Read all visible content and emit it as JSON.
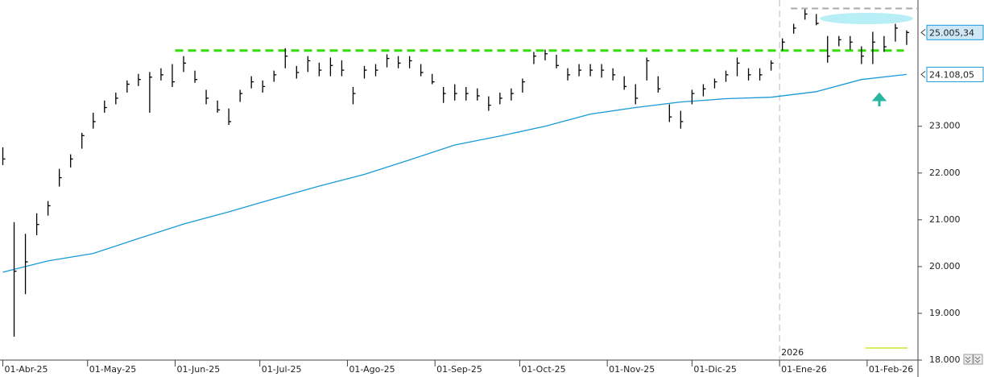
{
  "chart_data": {
    "type": "ohlc",
    "x": [
      "2025-04-01",
      "2025-04-05",
      "2025-04-09",
      "2025-04-13",
      "2025-04-17",
      "2025-04-21",
      "2025-04-25",
      "2025-04-29",
      "2025-05-03",
      "2025-05-07",
      "2025-05-11",
      "2025-05-15",
      "2025-05-19",
      "2025-05-23",
      "2025-05-27",
      "2025-05-31",
      "2025-06-04",
      "2025-06-08",
      "2025-06-12",
      "2025-06-16",
      "2025-06-20",
      "2025-06-24",
      "2025-06-28",
      "2025-07-02",
      "2025-07-06",
      "2025-07-10",
      "2025-07-14",
      "2025-07-18",
      "2025-07-22",
      "2025-07-26",
      "2025-07-30",
      "2025-08-03",
      "2025-08-07",
      "2025-08-11",
      "2025-08-15",
      "2025-08-19",
      "2025-08-23",
      "2025-08-27",
      "2025-08-31",
      "2025-09-04",
      "2025-09-08",
      "2025-09-12",
      "2025-09-16",
      "2025-09-20",
      "2025-09-24",
      "2025-09-28",
      "2025-10-02",
      "2025-10-06",
      "2025-10-10",
      "2025-10-14",
      "2025-10-18",
      "2025-10-22",
      "2025-10-26",
      "2025-10-30",
      "2025-11-03",
      "2025-11-07",
      "2025-11-11",
      "2025-11-15",
      "2025-11-19",
      "2025-11-23",
      "2025-11-27",
      "2025-12-01",
      "2025-12-05",
      "2025-12-09",
      "2025-12-13",
      "2025-12-17",
      "2025-12-21",
      "2025-12-25",
      "2025-12-29",
      "2026-01-02",
      "2026-01-06",
      "2026-01-10",
      "2026-01-14",
      "2026-01-18",
      "2026-01-22",
      "2026-01-26",
      "2026-01-30",
      "2026-02-03",
      "2026-02-07",
      "2026-02-11",
      "2026-02-15"
    ],
    "high": [
      22550,
      20950,
      20700,
      21140,
      21400,
      22090,
      22400,
      22860,
      23290,
      23550,
      23720,
      23980,
      24120,
      24160,
      24240,
      24330,
      24500,
      24190,
      23780,
      23550,
      23380,
      23780,
      24070,
      23980,
      24190,
      24670,
      24290,
      24500,
      24360,
      24470,
      24410,
      23840,
      24290,
      24330,
      24540,
      24500,
      24500,
      24330,
      24120,
      23840,
      23900,
      23840,
      23810,
      23640,
      23720,
      23810,
      24020,
      24590,
      24640,
      24530,
      24240,
      24330,
      24330,
      24330,
      24240,
      24070,
      23900,
      24470,
      24070,
      23470,
      23330,
      23780,
      23900,
      24020,
      24190,
      24470,
      24240,
      24240,
      24410,
      24880,
      25190,
      25500,
      25400,
      24930,
      24930,
      24930,
      24710,
      25020,
      24930,
      25190,
      25050
    ],
    "low": [
      22170,
      18500,
      19410,
      20670,
      21090,
      21710,
      22120,
      22520,
      22950,
      23290,
      23470,
      23720,
      23860,
      23290,
      23980,
      23840,
      24160,
      23930,
      23470,
      23290,
      23030,
      23520,
      23810,
      23720,
      23950,
      24240,
      24020,
      24160,
      24070,
      24070,
      24070,
      23470,
      24020,
      24070,
      24260,
      24240,
      24240,
      24070,
      23900,
      23500,
      23550,
      23550,
      23550,
      23330,
      23470,
      23550,
      23720,
      24330,
      24410,
      24240,
      23980,
      24070,
      24070,
      24040,
      23980,
      23780,
      23470,
      23980,
      23720,
      23090,
      22950,
      23470,
      23640,
      23810,
      23950,
      24070,
      23980,
      23980,
      24190,
      24620,
      24980,
      25280,
      25160,
      24360,
      24710,
      24640,
      24330,
      24330,
      24590,
      24810,
      24740
    ],
    "close": [
      22300,
      19900,
      20100,
      20900,
      21300,
      21900,
      22300,
      22800,
      23100,
      23400,
      23600,
      23900,
      24000,
      24050,
      24100,
      23950,
      24350,
      24000,
      23600,
      23350,
      23100,
      23700,
      23950,
      23850,
      24100,
      24500,
      24150,
      24400,
      24200,
      24300,
      24200,
      23700,
      24200,
      24200,
      24450,
      24350,
      24400,
      24150,
      23950,
      23700,
      23700,
      23700,
      23650,
      23450,
      23600,
      23700,
      23950,
      24500,
      24550,
      24300,
      24100,
      24200,
      24200,
      24200,
      24100,
      23850,
      23600,
      24400,
      23800,
      23200,
      23100,
      23700,
      23800,
      23950,
      24100,
      24350,
      24100,
      24100,
      24350,
      24800,
      25100,
      25400,
      25200,
      24500,
      24850,
      24800,
      24500,
      24800,
      24700,
      25100,
      25005.34
    ],
    "color": "#000000",
    "ma": {
      "color": "#1a9ad6",
      "x": [
        "2025-04-01",
        "2025-04-17",
        "2025-05-03",
        "2025-05-19",
        "2025-06-04",
        "2025-06-20",
        "2025-07-06",
        "2025-07-22",
        "2025-08-07",
        "2025-08-23",
        "2025-09-08",
        "2025-09-24",
        "2025-10-10",
        "2025-10-26",
        "2025-11-11",
        "2025-11-27",
        "2025-12-13",
        "2025-12-29",
        "2026-01-14",
        "2026-01-30",
        "2026-02-15"
      ],
      "values": [
        19880,
        20120,
        20280,
        20600,
        20910,
        21170,
        21450,
        21720,
        21970,
        22280,
        22600,
        22790,
        23000,
        23260,
        23400,
        23520,
        23590,
        23620,
        23740,
        24000,
        24108.05
      ]
    },
    "hlines": [
      {
        "value": 24620,
        "from": "2025-06-01",
        "to": "2026-02-14",
        "color": "#33dd00",
        "dash": "10,6",
        "width": 3
      },
      {
        "value": 25520,
        "from": "2026-01-05",
        "to": "2026-02-19",
        "color": "#aaaaaa",
        "dash": "8,5",
        "width": 2
      }
    ],
    "price_labels": [
      {
        "value": 25005.34,
        "label": "25.005,34",
        "fill": "#cfe8f8"
      },
      {
        "value": 24108.05,
        "label": "24.108,05",
        "fill": "#ffffff"
      }
    ],
    "year_markers": [
      {
        "x": "2026-01-01",
        "label": "2026"
      }
    ],
    "xlim": [
      "2025-03-31",
      "2026-02-19"
    ],
    "ylim": [
      18000,
      25700
    ],
    "xticks": [
      {
        "value": "2025-04-01",
        "label": "01-Abr-25"
      },
      {
        "value": "2025-05-01",
        "label": "01-May-25"
      },
      {
        "value": "2025-06-01",
        "label": "01-Jun-25"
      },
      {
        "value": "2025-07-01",
        "label": "01-Jul-25"
      },
      {
        "value": "2025-08-01",
        "label": "01-Ago-25"
      },
      {
        "value": "2025-09-01",
        "label": "01-Sep-25"
      },
      {
        "value": "2025-10-01",
        "label": "01-Oct-25"
      },
      {
        "value": "2025-11-01",
        "label": "01-Nov-25"
      },
      {
        "value": "2025-12-01",
        "label": "01-Dic-25"
      },
      {
        "value": "2026-01-01",
        "label": "01-Ene-26"
      },
      {
        "value": "2026-02-01",
        "label": "01-Feb-26"
      }
    ],
    "yticks": [
      {
        "value": 18000,
        "label": "18.000"
      },
      {
        "value": 19000,
        "label": "19.000"
      },
      {
        "value": 20000,
        "label": "20.000"
      },
      {
        "value": 21000,
        "label": "21.000"
      },
      {
        "value": 22000,
        "label": "22.000"
      },
      {
        "value": 23000,
        "label": "23.000"
      }
    ]
  }
}
